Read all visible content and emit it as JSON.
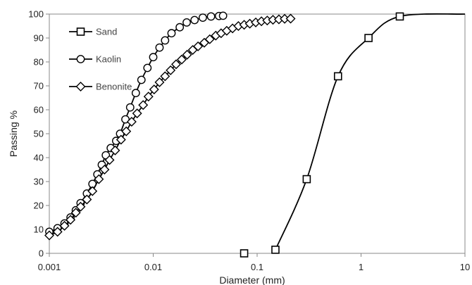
{
  "chart_data": {
    "type": "scatter",
    "xlabel": "Diameter (mm)",
    "ylabel": "Passing %",
    "xscale": "log",
    "xlim": [
      0.001,
      10
    ],
    "ylim": [
      0,
      100
    ],
    "xticks": [
      0.001,
      0.01,
      0.1,
      1,
      10
    ],
    "xtick_labels": [
      "0.001",
      "0.01",
      "0.1",
      "1",
      "10"
    ],
    "yticks": [
      0,
      10,
      20,
      30,
      40,
      50,
      60,
      70,
      80,
      90,
      100
    ],
    "ytick_labels": [
      "0",
      "10",
      "20",
      "30",
      "40",
      "50",
      "60",
      "70",
      "80",
      "90",
      "100"
    ],
    "grid": false,
    "legend_position": "top-left",
    "line_color": "#000000",
    "series": [
      {
        "name": "Sand",
        "marker": "square",
        "connect": [
          1,
          2,
          3,
          4,
          5,
          6
        ],
        "points": [
          [
            0.075,
            0
          ],
          [
            0.15,
            1.5
          ],
          [
            0.3,
            31
          ],
          [
            0.6,
            74
          ],
          [
            1.18,
            90
          ],
          [
            2.36,
            99
          ],
          [
            10,
            100
          ]
        ]
      },
      {
        "name": "Kaolin",
        "marker": "circle",
        "points": [
          [
            0.001,
            9
          ],
          [
            0.0012,
            10.5
          ],
          [
            0.0014,
            12.5
          ],
          [
            0.0016,
            15
          ],
          [
            0.0018,
            18
          ],
          [
            0.002,
            21
          ],
          [
            0.0023,
            25
          ],
          [
            0.0026,
            29
          ],
          [
            0.0029,
            33
          ],
          [
            0.0032,
            37
          ],
          [
            0.0035,
            41
          ],
          [
            0.0039,
            44
          ],
          [
            0.0044,
            47
          ],
          [
            0.0048,
            50
          ],
          [
            0.0054,
            56
          ],
          [
            0.006,
            61
          ],
          [
            0.0068,
            67
          ],
          [
            0.0077,
            72.5
          ],
          [
            0.0088,
            77.5
          ],
          [
            0.01,
            82
          ],
          [
            0.0115,
            86
          ],
          [
            0.013,
            89
          ],
          [
            0.015,
            92
          ],
          [
            0.018,
            94.5
          ],
          [
            0.021,
            96.5
          ],
          [
            0.025,
            97.5
          ],
          [
            0.03,
            98.5
          ],
          [
            0.036,
            99
          ],
          [
            0.043,
            99.2
          ],
          [
            0.047,
            99.3
          ]
        ]
      },
      {
        "name": "Benonite",
        "marker": "diamond",
        "points": [
          [
            0.001,
            7.5
          ],
          [
            0.0012,
            9
          ],
          [
            0.0014,
            11.5
          ],
          [
            0.0016,
            14
          ],
          [
            0.0018,
            17
          ],
          [
            0.002,
            19.5
          ],
          [
            0.0023,
            22.5
          ],
          [
            0.0026,
            26
          ],
          [
            0.003,
            31
          ],
          [
            0.0034,
            35
          ],
          [
            0.0038,
            39
          ],
          [
            0.0043,
            43
          ],
          [
            0.0049,
            47.5
          ],
          [
            0.0055,
            51
          ],
          [
            0.0062,
            55
          ],
          [
            0.007,
            58.5
          ],
          [
            0.008,
            62
          ],
          [
            0.009,
            65.5
          ],
          [
            0.0102,
            68.5
          ],
          [
            0.0115,
            71.5
          ],
          [
            0.013,
            74
          ],
          [
            0.0147,
            76.5
          ],
          [
            0.0166,
            79
          ],
          [
            0.0188,
            81
          ],
          [
            0.0212,
            83
          ],
          [
            0.024,
            85
          ],
          [
            0.027,
            86.5
          ],
          [
            0.031,
            88
          ],
          [
            0.035,
            89.5
          ],
          [
            0.04,
            91
          ],
          [
            0.045,
            92
          ],
          [
            0.051,
            93
          ],
          [
            0.058,
            94
          ],
          [
            0.066,
            95
          ],
          [
            0.075,
            95.5
          ],
          [
            0.085,
            96
          ],
          [
            0.097,
            96.5
          ],
          [
            0.11,
            97
          ],
          [
            0.125,
            97.3
          ],
          [
            0.142,
            97.6
          ],
          [
            0.162,
            97.8
          ],
          [
            0.184,
            98
          ],
          [
            0.21,
            98.1
          ]
        ]
      }
    ]
  }
}
